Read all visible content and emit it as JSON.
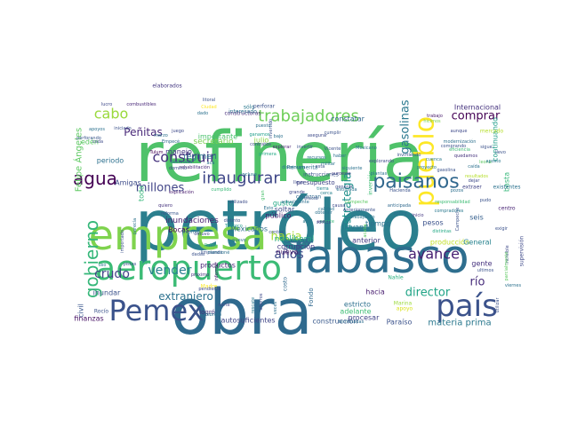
{
  "wordcloud": {
    "words": [
      {
        "text": "refinería",
        "color": "#4fc26a"
      },
      {
        "text": "petróleo",
        "color": "#2b7f8e"
      },
      {
        "text": "obra",
        "color": "#2f6a8e"
      },
      {
        "text": "Tabasco",
        "color": "#2e6e8e"
      },
      {
        "text": "empresa",
        "color": "#7fd34e"
      },
      {
        "text": "Pemex",
        "color": "#3a528b"
      },
      {
        "text": "aeropuerto",
        "color": "#3bbb75"
      },
      {
        "text": "país",
        "color": "#3b528b"
      },
      {
        "text": "pueblo",
        "color": "#fde725"
      },
      {
        "text": "agua",
        "color": "#440154"
      },
      {
        "text": "paisanos",
        "color": "#31688e"
      },
      {
        "text": "inaugurar",
        "color": "#3f4788"
      },
      {
        "text": "trabajadores",
        "color": "#6ece58"
      },
      {
        "text": "cabo",
        "color": "#9ad93c"
      },
      {
        "text": "construir",
        "color": "#46327e"
      },
      {
        "text": "gobierno",
        "color": "#35b779"
      },
      {
        "text": "avance",
        "color": "#482173"
      },
      {
        "text": "crudo",
        "color": "#414487"
      },
      {
        "text": "vender",
        "color": "#277f8e"
      },
      {
        "text": "años",
        "color": "#3e4a89"
      },
      {
        "text": "hacia",
        "color": "#a5db36"
      },
      {
        "text": "estrategia",
        "color": "#21918c"
      },
      {
        "text": "gasolinas",
        "color": "#2a788e"
      },
      {
        "text": "director",
        "color": "#20a486"
      },
      {
        "text": "millones",
        "color": "#414487"
      },
      {
        "text": "extranjero",
        "color": "#2c718e"
      },
      {
        "text": "comprar",
        "color": "#440154"
      },
      {
        "text": "Peñitas",
        "color": "#482878"
      },
      {
        "text": "río",
        "color": "#472d7b"
      },
      {
        "text": "Felipe Ángeles",
        "color": "#5ec962"
      },
      {
        "text": "materia prima",
        "color": "#2a788e"
      },
      {
        "text": "construcción",
        "color": "#38598c"
      },
      {
        "text": "autosuficientes",
        "color": "#404688"
      },
      {
        "text": "inundaciones",
        "color": "#481f70"
      },
      {
        "text": "Mexicanos",
        "color": "#2e6f8e"
      },
      {
        "text": "Internacional",
        "color": "#46337e"
      },
      {
        "text": "producción",
        "color": "#c2df23"
      },
      {
        "text": "neoliberal",
        "color": "#22a884"
      },
      {
        "text": "corrupción",
        "color": "#443983"
      },
      {
        "text": "nueva",
        "color": "#48186a"
      },
      {
        "text": "Paraíso",
        "color": "#3b528b"
      },
      {
        "text": "Fondo",
        "color": "#30698e"
      },
      {
        "text": "secretario",
        "color": "#7ad151"
      },
      {
        "text": "régimen",
        "color": "#2c728e"
      },
      {
        "text": "importante",
        "color": "#4ac16d"
      },
      {
        "text": "manejo",
        "color": "#453781"
      },
      {
        "text": "periodo",
        "color": "#2d708e"
      },
      {
        "text": "productos",
        "color": "#482475"
      },
      {
        "text": "presupuesto",
        "color": "#414487"
      },
      {
        "text": "soltar",
        "color": "#3e4989"
      },
      {
        "text": "público",
        "color": "#481a6c"
      },
      {
        "text": "llevando",
        "color": "#2a788e"
      },
      {
        "text": "tiempo",
        "color": "#2c728e"
      },
      {
        "text": "anterior",
        "color": "#443a83"
      },
      {
        "text": "pesos",
        "color": "#3b528b"
      },
      {
        "text": "General",
        "color": "#26828e"
      },
      {
        "text": "Bocas",
        "color": "#440154"
      },
      {
        "text": "gusto",
        "color": "#22a884"
      },
      {
        "text": "constatar",
        "color": "#31688e"
      },
      {
        "text": "continuando",
        "color": "#1f9e89"
      },
      {
        "text": "basta",
        "color": "#35b779"
      },
      {
        "text": "seis",
        "color": "#355f8d"
      },
      {
        "text": "gente",
        "color": "#46327e"
      },
      {
        "text": "estricto",
        "color": "#2d708e"
      },
      {
        "text": "adelante",
        "color": "#3dbc74"
      },
      {
        "text": "procesar",
        "color": "#414487"
      },
      {
        "text": "hacia",
        "color": "#481d6f"
      },
      {
        "text": "julio",
        "color": "#8bd646"
      },
      {
        "text": "edén",
        "color": "#5cc863"
      },
      {
        "text": "civil",
        "color": "#39568c"
      },
      {
        "text": "toda",
        "color": "#35b779"
      },
      {
        "text": "finanzas",
        "color": "#471164"
      },
      {
        "text": "inundar",
        "color": "#3b528b"
      },
      {
        "text": "Amigas",
        "color": "#3e4c8a"
      },
      {
        "text": "logró",
        "color": "#46337e"
      },
      {
        "text": "Madre",
        "color": "#fde725"
      },
      {
        "text": "costo",
        "color": "#306a8e"
      },
      {
        "text": "Rocío",
        "color": "#3b528b"
      },
      {
        "text": "Nahle",
        "color": "#2ab07f"
      },
      {
        "text": "apoyo",
        "color": "#d8e219"
      },
      {
        "text": "Marina",
        "color": "#9bd93c"
      },
      {
        "text": "Renumerita",
        "color": "#2d708e"
      },
      {
        "text": "rehabilitación",
        "color": "#482878"
      },
      {
        "text": "supervisión",
        "color": "#3e4989"
      },
      {
        "text": "centro",
        "color": "#482374"
      },
      {
        "text": "sólo",
        "color": "#2a788e"
      },
      {
        "text": "constructoras",
        "color": "#472c7a"
      },
      {
        "text": "elaborados",
        "color": "#453882"
      },
      {
        "text": "perforar",
        "color": "#3b528b"
      },
      {
        "text": "interesado",
        "color": "#2c718e"
      },
      {
        "text": "terminadas",
        "color": "#2e6e8e"
      },
      {
        "text": "extraer",
        "color": "#414487"
      },
      {
        "text": "existentes",
        "color": "#2c728e"
      },
      {
        "text": "explorando",
        "color": "#3e4a89"
      },
      {
        "text": "mercado",
        "color": "#b5de2b"
      },
      {
        "text": "inversión",
        "color": "#3dbc74"
      },
      {
        "text": "conozcan",
        "color": "#31688e"
      },
      {
        "text": "tierra",
        "color": "#25858e"
      },
      {
        "text": "cerca",
        "color": "#26818e"
      },
      {
        "text": "utilizado",
        "color": "#3d4d8a"
      },
      {
        "text": "cumplido",
        "color": "#38b977"
      },
      {
        "text": "incluso",
        "color": "#2a788e"
      },
      {
        "text": "reforma",
        "color": "#39568c"
      },
      {
        "text": "Texcoco",
        "color": "#1f988b"
      },
      {
        "text": "distinto",
        "color": "#3b528b"
      },
      {
        "text": "quiero",
        "color": "#46337e"
      },
      {
        "text": "obtener",
        "color": "#2c718e"
      },
      {
        "text": "suroeste",
        "color": "#453882"
      },
      {
        "text": "campeche",
        "color": "#5ec962"
      },
      {
        "text": "anticipada",
        "color": "#30698e"
      },
      {
        "text": "distintas",
        "color": "#22a884"
      },
      {
        "text": "gasolina",
        "color": "#3b528b"
      },
      {
        "text": "explicación",
        "color": "#481b6d"
      },
      {
        "text": "calidad",
        "color": "#2c728e"
      },
      {
        "text": "vez",
        "color": "#46337e"
      },
      {
        "text": "suerte",
        "color": "#35b779"
      },
      {
        "text": "somos",
        "color": "#3e4989"
      },
      {
        "text": "nuevo",
        "color": "#2d708e"
      },
      {
        "text": "control",
        "color": "#3b528b"
      },
      {
        "text": "gran",
        "color": "#4ac16d"
      },
      {
        "text": "rescate",
        "color": "#2a788e"
      },
      {
        "text": "instrucciones",
        "color": "#3b528b"
      },
      {
        "text": "militar",
        "color": "#2c718e"
      },
      {
        "text": "Tulum",
        "color": "#440154"
      },
      {
        "text": "Empecé",
        "color": "#31688e"
      },
      {
        "text": "dominio",
        "color": "#3e4a89"
      },
      {
        "text": "ganamos",
        "color": "#1f9e89"
      },
      {
        "text": "invertido",
        "color": "#3b528b"
      },
      {
        "text": "lucro",
        "color": "#3e4989"
      },
      {
        "text": "combustibles",
        "color": "#482878"
      },
      {
        "text": "apoyos",
        "color": "#2c728e"
      },
      {
        "text": "perforando",
        "color": "#39568c"
      },
      {
        "text": "cada",
        "color": "#3e4a89"
      },
      {
        "text": "iniciado",
        "color": "#3b528b"
      },
      {
        "text": "marzo",
        "color": "#2c718e"
      },
      {
        "text": "contratos",
        "color": "#3e4989"
      },
      {
        "text": "explorar",
        "color": "#481d6f"
      },
      {
        "text": "puesto",
        "color": "#2d708e"
      },
      {
        "text": "primera",
        "color": "#22a884"
      },
      {
        "text": "invertir",
        "color": "#3b528b"
      },
      {
        "text": "disminuya",
        "color": "#2a788e"
      },
      {
        "text": "recursos",
        "color": "#2e6f8e"
      },
      {
        "text": "Vicente",
        "color": "#3b528b"
      },
      {
        "text": "Mexicano",
        "color": "#2c728e"
      },
      {
        "text": "trabajo",
        "color": "#481a6c"
      },
      {
        "text": "hicimos",
        "color": "#7ad151"
      },
      {
        "text": "aunque",
        "color": "#3e4989"
      },
      {
        "text": "modernización",
        "color": "#2d708e"
      },
      {
        "text": "comprando",
        "color": "#3b528b"
      },
      {
        "text": "eficiencia",
        "color": "#3dbc74"
      },
      {
        "text": "quedamos",
        "color": "#46337e"
      },
      {
        "text": "proyecto",
        "color": "#2a788e"
      },
      {
        "text": "resultados",
        "color": "#b5de2b"
      },
      {
        "text": "exigir",
        "color": "#3b528b"
      },
      {
        "text": "aplica",
        "color": "#2c718e"
      },
      {
        "text": "inicio",
        "color": "#453882"
      },
      {
        "text": "dejar",
        "color": "#3e4989"
      },
      {
        "text": "pudo",
        "color": "#3b528b"
      },
      {
        "text": "plantas",
        "color": "#2c728e"
      },
      {
        "text": "Campeche",
        "color": "#3b528b"
      },
      {
        "text": "pozos",
        "color": "#2d708e"
      },
      {
        "text": "cuenca",
        "color": "#2a788e"
      },
      {
        "text": "detuvo",
        "color": "#3e4989"
      },
      {
        "text": "limpiando",
        "color": "#3b528b"
      },
      {
        "text": "mencioné",
        "color": "#2c718e"
      },
      {
        "text": "Patria",
        "color": "#3dbc74"
      },
      {
        "text": "informar",
        "color": "#481d6f"
      },
      {
        "text": "parecía",
        "color": "#2c728e"
      },
      {
        "text": "importado",
        "color": "#3b528b"
      },
      {
        "text": "próximo",
        "color": "#46337e"
      },
      {
        "text": "norte",
        "color": "#3e4989"
      },
      {
        "text": "veces",
        "color": "#2d708e"
      },
      {
        "text": "utilizar",
        "color": "#3b528b"
      },
      {
        "text": "viernes",
        "color": "#2c718e"
      },
      {
        "text": "increíble",
        "color": "#3e4a89"
      },
      {
        "text": "parcialmente",
        "color": "#5ec962"
      },
      {
        "text": "ultimos",
        "color": "#3b528b"
      },
      {
        "text": "compradores",
        "color": "#2a788e"
      },
      {
        "text": "responsabilidad",
        "color": "#3dbc74"
      },
      {
        "text": "pendiente",
        "color": "#3e4989"
      },
      {
        "text": "febrero",
        "color": "#2c728e"
      },
      {
        "text": "acá",
        "color": "#2d708e"
      },
      {
        "text": "dadas",
        "color": "#3b528b"
      },
      {
        "text": "dado",
        "color": "#2c718e"
      },
      {
        "text": "Ciudad",
        "color": "#fde725"
      },
      {
        "text": "litoral",
        "color": "#3b528b"
      },
      {
        "text": "uso",
        "color": "#2a788e"
      },
      {
        "text": "juego",
        "color": "#3e4989"
      },
      {
        "text": "destinada",
        "color": "#2c728e"
      },
      {
        "text": "pistas",
        "color": "#3b528b"
      },
      {
        "text": "informó",
        "color": "#2d708e"
      },
      {
        "text": "ahorros",
        "color": "#3e4a89"
      },
      {
        "text": "sigue",
        "color": "#3b528b"
      },
      {
        "text": "caída",
        "color": "#2c718e"
      },
      {
        "text": "leona",
        "color": "#5ec962"
      },
      {
        "text": "aposto",
        "color": "#2a788e"
      },
      {
        "text": "llevo",
        "color": "#3b528b"
      },
      {
        "text": "lleva",
        "color": "#3e4989"
      },
      {
        "text": "bajo",
        "color": "#2c728e"
      },
      {
        "text": "esta",
        "color": "#3b528b"
      },
      {
        "text": "haber",
        "color": "#2d708e"
      },
      {
        "text": "cumplir",
        "color": "#3b528b"
      },
      {
        "text": "Esto",
        "color": "#2c718e"
      },
      {
        "text": "causa",
        "color": "#3e4989"
      },
      {
        "text": "acaba",
        "color": "#5ec962"
      },
      {
        "text": "Anteriormente",
        "color": "#3b528b"
      },
      {
        "text": "trabajando",
        "color": "#2a788e"
      },
      {
        "text": "generar",
        "color": "#3e4a89"
      },
      {
        "text": "Hacienda",
        "color": "#3b528b"
      },
      {
        "text": "siguiente",
        "color": "#2c728e"
      },
      {
        "text": "invirtiendo",
        "color": "#3b528b"
      },
      {
        "text": "actualmente",
        "color": "#2d708e"
      },
      {
        "text": "grande",
        "color": "#3e4989"
      },
      {
        "text": "estimada",
        "color": "#2c718e"
      },
      {
        "text": "efecto",
        "color": "#3b528b"
      },
      {
        "text": "abril",
        "color": "#2a788e"
      },
      {
        "text": "asegurar",
        "color": "#3e4a89"
      },
      {
        "text": "barriles",
        "color": "#3b528b"
      }
    ]
  }
}
